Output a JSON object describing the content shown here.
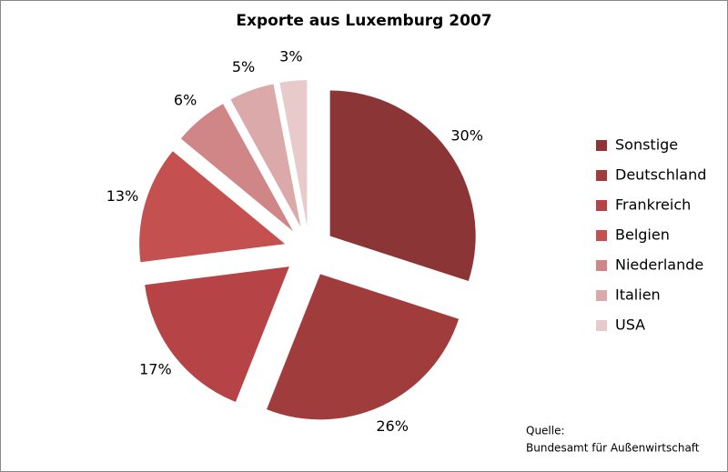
{
  "chart_data": {
    "type": "pie",
    "title": "Exporte aus Luxemburg 2007",
    "categories": [
      "Sonstige",
      "Deutschland",
      "Frankreich",
      "Belgien",
      "Niederlande",
      "Italien",
      "USA"
    ],
    "values": [
      30,
      26,
      17,
      13,
      6,
      5,
      3
    ],
    "value_labels": [
      "30%",
      "26%",
      "17%",
      "13%",
      "6%",
      "5%",
      "3%"
    ],
    "colors": [
      "#8b3536",
      "#a13c3d",
      "#b64345",
      "#c4504f",
      "#d08586",
      "#dca9aa",
      "#e8cacb"
    ],
    "legend": "right",
    "note": [
      "Quelle:",
      "Bundesamt für Außenwirtschaft"
    ]
  }
}
